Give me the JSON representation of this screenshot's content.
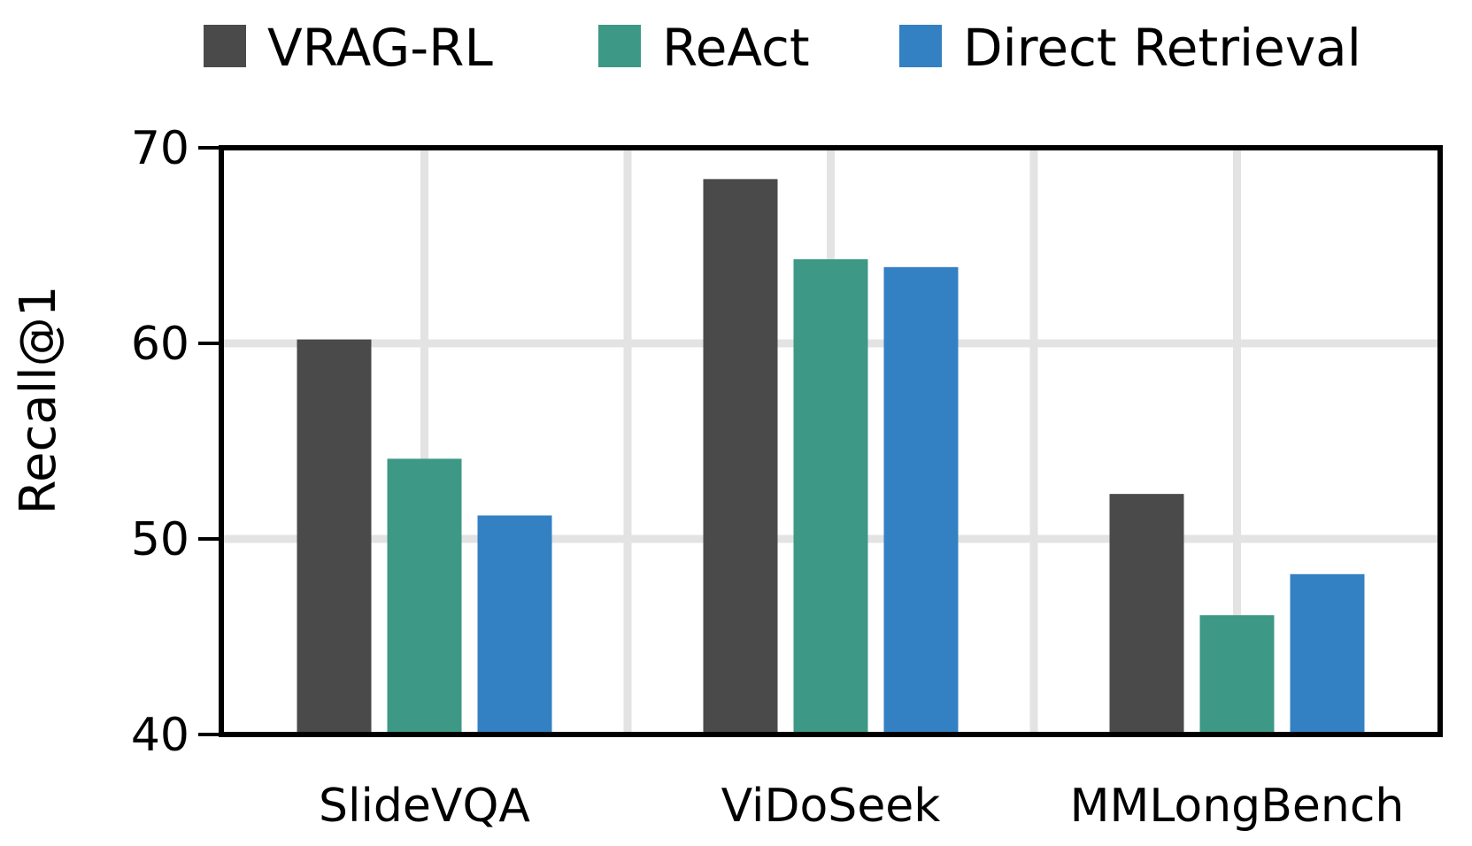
{
  "chart_data": {
    "type": "bar",
    "categories": [
      "SlideVQA",
      "ViDoSeek",
      "MMLongBench"
    ],
    "series": [
      {
        "name": "VRAG-RL",
        "values": [
          60.2,
          68.4,
          52.3
        ],
        "color": "#4a4a4a"
      },
      {
        "name": "ReAct",
        "values": [
          54.1,
          64.3,
          46.1
        ],
        "color": "#3d9886"
      },
      {
        "name": "Direct Retrieval",
        "values": [
          51.2,
          63.9,
          48.2
        ],
        "color": "#3380c3"
      }
    ],
    "ylabel": "Recall@1",
    "xlabel": "",
    "title": "",
    "ylim": [
      40,
      70
    ],
    "yticks": [
      40,
      50,
      60,
      70
    ],
    "grid": true,
    "legend_position": "top"
  }
}
